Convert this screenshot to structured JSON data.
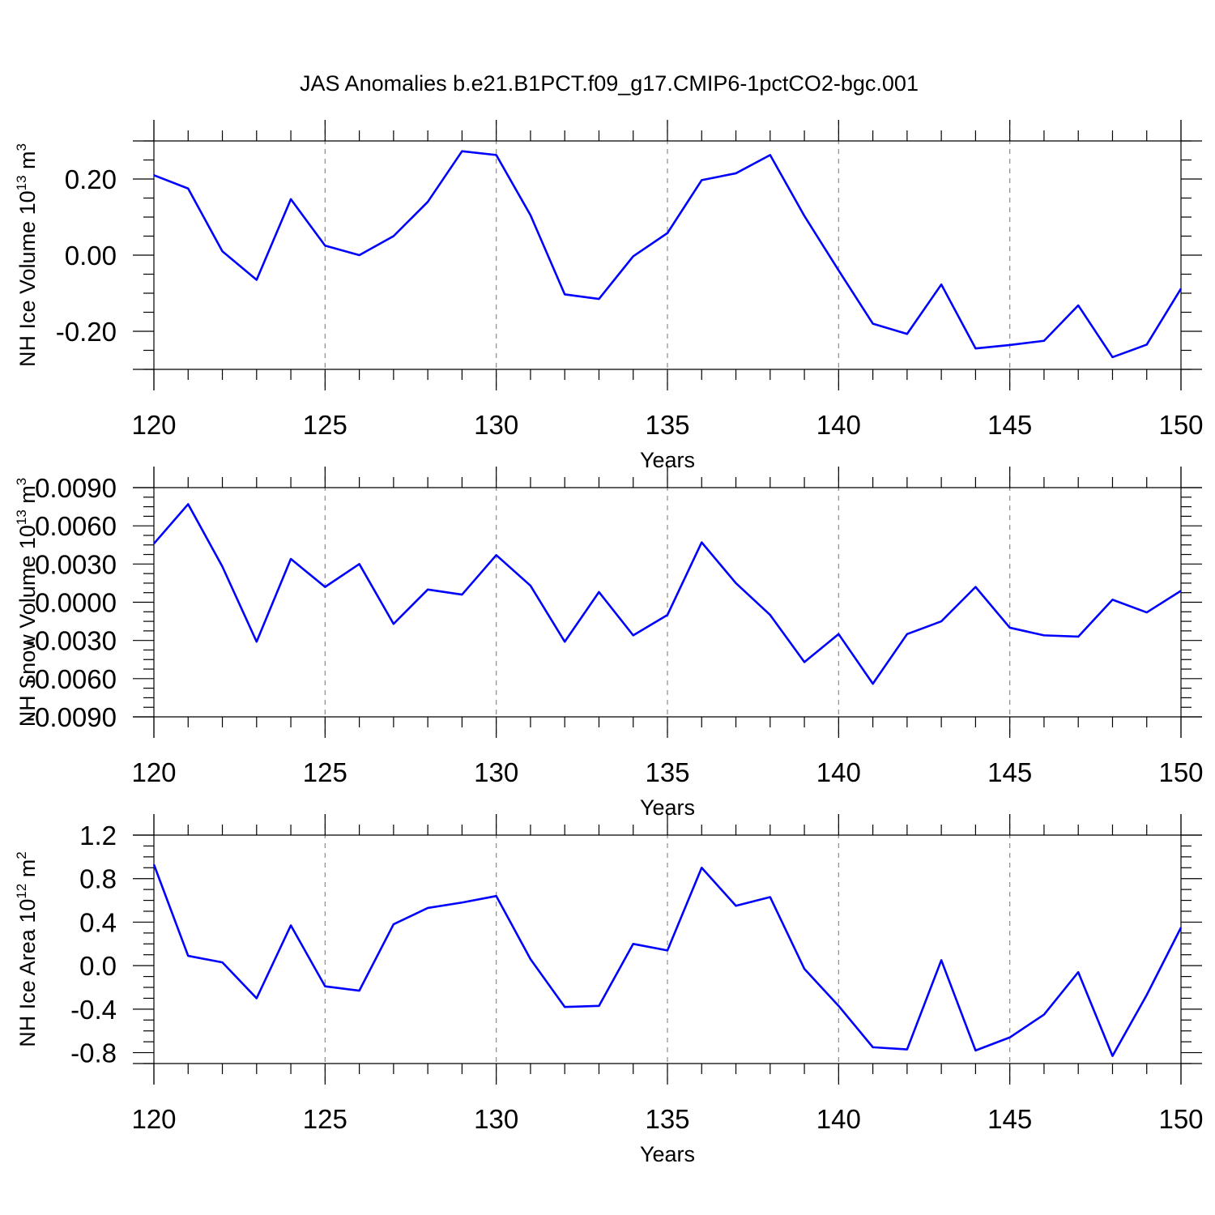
{
  "figure_title": "JAS Anomalies b.e21.B1PCT.f09_g17.CMIP6-1pctCO2-bgc.001",
  "colors": {
    "line": "#0000ff",
    "grid": "#8c8c8c",
    "axis": "#000000",
    "background": "#ffffff"
  },
  "chart_data": [
    {
      "type": "line",
      "title": "",
      "xlabel": "Years",
      "ylabel": {
        "text": "NH Ice Volume 10",
        "exponent": "13",
        "unit": " m",
        "unit_exponent": "3"
      },
      "xlim": [
        120,
        150
      ],
      "ylim": [
        -0.3,
        0.3
      ],
      "x_ticks": [
        120,
        125,
        130,
        135,
        140,
        145,
        150
      ],
      "x_tick_labels": [
        "120",
        "125",
        "130",
        "135",
        "140",
        "145",
        "150"
      ],
      "y_ticks": [
        -0.2,
        0.0,
        0.2
      ],
      "y_tick_labels": [
        "-0.20",
        "0.00",
        "0.20"
      ],
      "grid": "vertical dashed at major x ticks",
      "x": [
        120,
        121,
        122,
        123,
        124,
        125,
        126,
        127,
        128,
        129,
        130,
        131,
        132,
        133,
        134,
        135,
        136,
        137,
        138,
        139,
        140,
        141,
        142,
        143,
        144,
        145,
        146,
        147,
        148,
        149,
        150
      ],
      "series": [
        {
          "values": [
            0.21,
            0.175,
            0.01,
            -0.065,
            0.147,
            0.025,
            0.0,
            0.05,
            0.14,
            0.273,
            0.263,
            0.105,
            -0.103,
            -0.115,
            -0.003,
            0.058,
            0.197,
            0.215,
            0.263,
            0.103,
            -0.04,
            -0.18,
            -0.207,
            -0.077,
            -0.245,
            -0.236,
            -0.225,
            -0.132,
            -0.268,
            -0.235,
            -0.088
          ]
        }
      ]
    },
    {
      "type": "line",
      "title": "",
      "xlabel": "Years",
      "ylabel": {
        "text": "NH Snow Volume 10",
        "exponent": "13",
        "unit": " m",
        "unit_exponent": "3"
      },
      "xlim": [
        120,
        150
      ],
      "ylim": [
        -0.009,
        0.009
      ],
      "x_ticks": [
        120,
        125,
        130,
        135,
        140,
        145,
        150
      ],
      "x_tick_labels": [
        "120",
        "125",
        "130",
        "135",
        "140",
        "145",
        "150"
      ],
      "y_ticks": [
        -0.009,
        -0.006,
        -0.003,
        0.0,
        0.003,
        0.006,
        0.009
      ],
      "y_tick_labels": [
        "-0.0090",
        "-0.0060",
        "-0.0030",
        "0.0000",
        "0.0030",
        "0.0060",
        "0.0090"
      ],
      "grid": "vertical dashed at major x ticks",
      "x": [
        120,
        121,
        122,
        123,
        124,
        125,
        126,
        127,
        128,
        129,
        130,
        131,
        132,
        133,
        134,
        135,
        136,
        137,
        138,
        139,
        140,
        141,
        142,
        143,
        144,
        145,
        146,
        147,
        148,
        149,
        150
      ],
      "series": [
        {
          "values": [
            0.0046,
            0.0077,
            0.0028,
            -0.0031,
            0.0034,
            0.0012,
            0.003,
            -0.0017,
            0.001,
            0.0006,
            0.0037,
            0.0013,
            -0.0031,
            0.0008,
            -0.0026,
            -0.001,
            0.0047,
            0.0015,
            -0.001,
            -0.0047,
            -0.0025,
            -0.0064,
            -0.0025,
            -0.0015,
            0.0012,
            -0.002,
            -0.0026,
            -0.0027,
            0.0002,
            -0.0008,
            0.0009
          ]
        }
      ]
    },
    {
      "type": "line",
      "title": "",
      "xlabel": "Years",
      "ylabel": {
        "text": "NH Ice Area 10",
        "exponent": "12",
        "unit": " m",
        "unit_exponent": "2"
      },
      "xlim": [
        120,
        150
      ],
      "ylim": [
        -0.9,
        1.2
      ],
      "x_ticks": [
        120,
        125,
        130,
        135,
        140,
        145,
        150
      ],
      "x_tick_labels": [
        "120",
        "125",
        "130",
        "135",
        "140",
        "145",
        "150"
      ],
      "y_ticks": [
        -0.8,
        -0.4,
        0.0,
        0.4,
        0.8,
        1.2
      ],
      "y_tick_labels": [
        "-0.8",
        "-0.4",
        "0.0",
        "0.4",
        "0.8",
        "1.2"
      ],
      "grid": "vertical dashed at major x ticks",
      "x": [
        120,
        121,
        122,
        123,
        124,
        125,
        126,
        127,
        128,
        129,
        130,
        131,
        132,
        133,
        134,
        135,
        136,
        137,
        138,
        139,
        140,
        141,
        142,
        143,
        144,
        145,
        146,
        147,
        148,
        149,
        150
      ],
      "series": [
        {
          "values": [
            0.93,
            0.09,
            0.03,
            -0.3,
            0.37,
            -0.19,
            -0.23,
            0.38,
            0.53,
            0.58,
            0.64,
            0.06,
            -0.38,
            -0.37,
            0.2,
            0.14,
            0.9,
            0.55,
            0.63,
            -0.03,
            -0.37,
            -0.75,
            -0.77,
            0.05,
            -0.78,
            -0.66,
            -0.45,
            -0.06,
            -0.83,
            -0.27,
            0.35
          ]
        }
      ]
    }
  ]
}
